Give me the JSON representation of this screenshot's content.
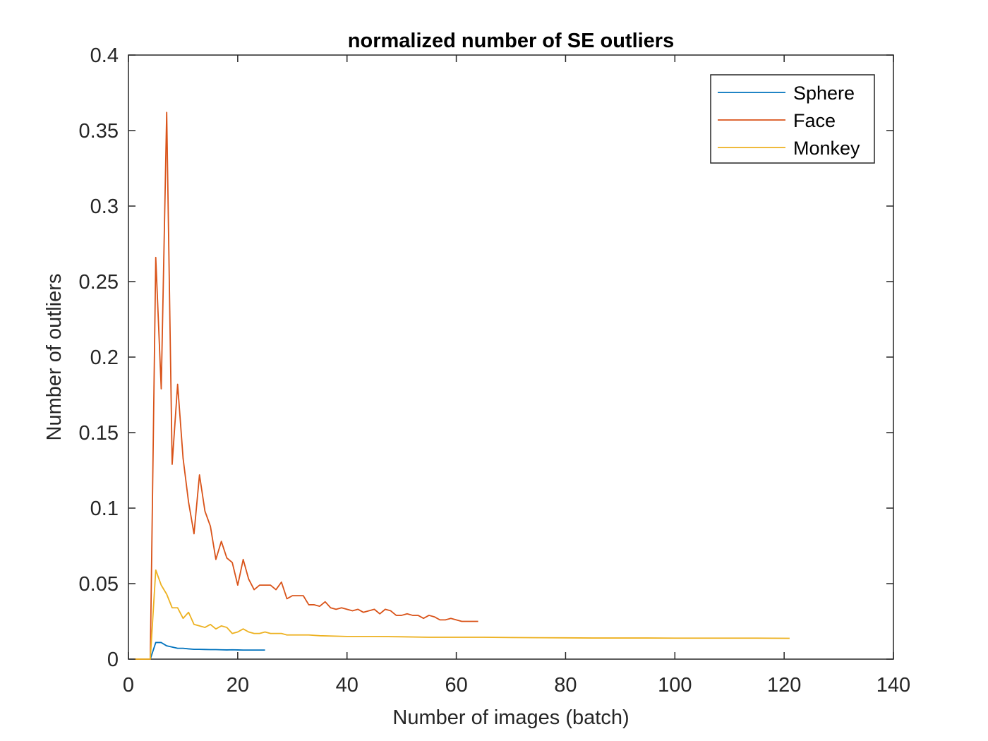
{
  "chart_data": {
    "type": "line",
    "title": "normalized number of SE outliers",
    "xlabel": "Number of images (batch)",
    "ylabel": "Number of outliers",
    "xlim": [
      0,
      140
    ],
    "ylim": [
      0,
      0.4
    ],
    "xticks": [
      0,
      20,
      40,
      60,
      80,
      100,
      120,
      140
    ],
    "yticks": [
      0,
      0.05,
      0.1,
      0.15,
      0.2,
      0.25,
      0.3,
      0.35,
      0.4
    ],
    "xtick_labels": [
      "0",
      "20",
      "40",
      "60",
      "80",
      "100",
      "120",
      "140"
    ],
    "ytick_labels": [
      "0",
      "0.05",
      "0.1",
      "0.15",
      "0.2",
      "0.25",
      "0.3",
      "0.35",
      "0.4"
    ],
    "grid": false,
    "legend_position": "top-right",
    "series": [
      {
        "name": "Sphere",
        "color": "#0072BD",
        "x": [
          1,
          2,
          3,
          4,
          5,
          6,
          7,
          8,
          9,
          10,
          11,
          12,
          13,
          14,
          15,
          16,
          17,
          18,
          19,
          20,
          21,
          22,
          23,
          24,
          25
        ],
        "y": [
          0,
          0,
          0,
          0,
          0.011,
          0.011,
          0.0088,
          0.008,
          0.0072,
          0.0072,
          0.0068,
          0.0065,
          0.0065,
          0.0064,
          0.0063,
          0.0063,
          0.0062,
          0.0061,
          0.0062,
          0.0061,
          0.006,
          0.006,
          0.006,
          0.006,
          0.006
        ]
      },
      {
        "name": "Face",
        "color": "#D95319",
        "x": [
          1,
          2,
          3,
          4,
          5,
          6,
          7,
          8,
          9,
          10,
          11,
          12,
          13,
          14,
          15,
          16,
          17,
          18,
          19,
          20,
          21,
          22,
          23,
          24,
          25,
          26,
          27,
          28,
          29,
          30,
          31,
          32,
          33,
          34,
          35,
          36,
          37,
          38,
          39,
          40,
          41,
          42,
          43,
          44,
          45,
          46,
          47,
          48,
          49,
          50,
          51,
          52,
          53,
          54,
          55,
          56,
          57,
          58,
          59,
          60,
          61,
          62,
          63,
          64
        ],
        "y": [
          0,
          0,
          0,
          0,
          0.266,
          0.179,
          0.362,
          0.129,
          0.182,
          0.133,
          0.104,
          0.083,
          0.122,
          0.098,
          0.088,
          0.066,
          0.078,
          0.067,
          0.064,
          0.049,
          0.066,
          0.053,
          0.046,
          0.049,
          0.049,
          0.049,
          0.046,
          0.051,
          0.04,
          0.042,
          0.042,
          0.042,
          0.036,
          0.036,
          0.035,
          0.038,
          0.034,
          0.033,
          0.034,
          0.033,
          0.032,
          0.033,
          0.031,
          0.032,
          0.033,
          0.03,
          0.033,
          0.032,
          0.029,
          0.029,
          0.03,
          0.029,
          0.029,
          0.027,
          0.029,
          0.028,
          0.026,
          0.026,
          0.027,
          0.026,
          0.025,
          0.025,
          0.025,
          0.025
        ]
      },
      {
        "name": "Monkey",
        "color": "#EDB120",
        "x": [
          1,
          2,
          3,
          4,
          5,
          6,
          7,
          8,
          9,
          10,
          11,
          12,
          13,
          14,
          15,
          16,
          17,
          18,
          19,
          20,
          21,
          22,
          23,
          24,
          25,
          26,
          27,
          28,
          29,
          30,
          31,
          32,
          33,
          35,
          40,
          45,
          50,
          55,
          60,
          65,
          70,
          75,
          80,
          85,
          90,
          95,
          100,
          105,
          110,
          115,
          121
        ],
        "y": [
          0,
          0,
          0,
          0,
          0.059,
          0.049,
          0.043,
          0.034,
          0.034,
          0.027,
          0.031,
          0.023,
          0.022,
          0.021,
          0.023,
          0.02,
          0.022,
          0.021,
          0.017,
          0.018,
          0.02,
          0.018,
          0.017,
          0.017,
          0.018,
          0.017,
          0.017,
          0.017,
          0.016,
          0.016,
          0.016,
          0.016,
          0.016,
          0.0155,
          0.015,
          0.015,
          0.0148,
          0.0145,
          0.0145,
          0.0145,
          0.0143,
          0.0142,
          0.0141,
          0.014,
          0.014,
          0.014,
          0.0139,
          0.0139,
          0.0139,
          0.0139,
          0.0138
        ]
      }
    ]
  }
}
